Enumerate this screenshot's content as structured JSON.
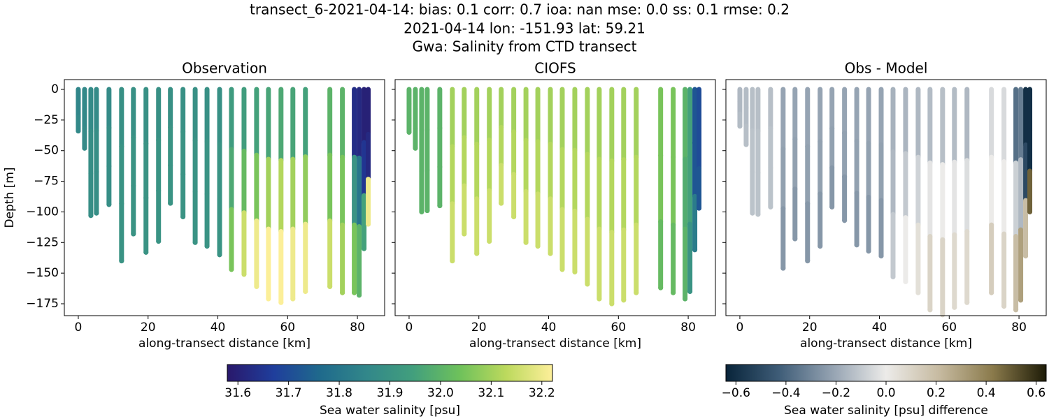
{
  "title": [
    "transect_6-2021-04-14: bias: 0.1  corr: 0.7  ioa: nan  mse: 0.0  ss: 0.1  rmse: 0.2",
    "2021-04-14 lon: -151.93 lat: 59.21",
    "Gwa: Salinity from CTD transect"
  ],
  "chart_data": [
    {
      "type": "scatter",
      "title": "Observation",
      "xlabel": "along-transect distance [km]",
      "ylabel": "Depth [m]",
      "xlim": [
        -4,
        87.8
      ],
      "ylim": [
        -184.7,
        8
      ],
      "xticks": [
        0,
        20,
        40,
        60,
        80
      ],
      "yticks": [
        {
          "value": 0,
          "label": "0"
        },
        {
          "value": -25,
          "label": "−25"
        },
        {
          "value": -50,
          "label": "−50"
        },
        {
          "value": -75,
          "label": "−75"
        },
        {
          "value": -100,
          "label": "−100"
        },
        {
          "value": -125,
          "label": "−125"
        },
        {
          "value": -150,
          "label": "−150"
        },
        {
          "value": -175,
          "label": "−175"
        }
      ],
      "x": [
        0,
        1.8,
        3.6,
        5.2,
        8.8,
        12.4,
        15.8,
        19.4,
        23,
        26.4,
        30,
        33.5,
        36.9,
        40.5,
        43.9,
        47.5,
        51.1,
        54.5,
        58.1,
        61.5,
        65.1,
        72.1,
        75.7,
        79.1,
        80.5,
        81.9,
        83.1
      ],
      "depths": [
        -34,
        -48,
        -103,
        -101,
        -94,
        -140,
        -118,
        -133,
        -124,
        -93,
        -104,
        -125,
        -128,
        -135,
        -147,
        -151,
        -161,
        -171,
        -174,
        -171,
        -165,
        -161,
        -166,
        -166,
        -168,
        -130,
        -110
      ],
      "values": [
        [
          31.85,
          31.85,
          31.86
        ],
        [
          31.86,
          31.86,
          31.87
        ],
        [
          31.87,
          31.88,
          31.88
        ],
        [
          31.87,
          31.88,
          31.88
        ],
        [
          31.87,
          31.88,
          31.88
        ],
        [
          31.89,
          31.9,
          31.9
        ],
        [
          31.89,
          31.9,
          31.9
        ],
        [
          31.89,
          31.9,
          31.9
        ],
        [
          31.89,
          31.9,
          31.9
        ],
        [
          31.89,
          31.9,
          31.9
        ],
        [
          31.89,
          31.9,
          31.9
        ],
        [
          31.89,
          31.9,
          31.9
        ],
        [
          31.89,
          31.9,
          31.9
        ],
        [
          31.89,
          31.9,
          31.9
        ],
        [
          31.93,
          31.97,
          32.05
        ],
        [
          31.94,
          32.02,
          32.15
        ],
        [
          31.95,
          32.05,
          32.2
        ],
        [
          31.96,
          32.1,
          32.22
        ],
        [
          31.97,
          32.12,
          32.22
        ],
        [
          31.96,
          32.1,
          32.2
        ],
        [
          31.95,
          32.08,
          32.2
        ],
        [
          32.0,
          32.05,
          32.15
        ],
        [
          32.0,
          32.05,
          32.1
        ],
        [
          31.63,
          31.9,
          32.05
        ],
        [
          31.62,
          31.8,
          32.0
        ],
        [
          31.6,
          31.65,
          31.95
        ],
        [
          31.6,
          31.62,
          32.2
        ]
      ],
      "colorbar": {
        "label": "Sea water salinity [psu]",
        "lim": [
          31.579,
          32.221
        ],
        "ticks": [
          31.6,
          31.7,
          31.8,
          31.9,
          32.0,
          32.1,
          32.2
        ],
        "tick_labels": [
          "31.6",
          "31.7",
          "31.8",
          "31.9",
          "32.0",
          "32.1",
          "32.2"
        ],
        "colors": [
          "#29186b",
          "#1f3e9c",
          "#1f6a8c",
          "#32878a",
          "#429f7d",
          "#6ec15b",
          "#bcd95d",
          "#fdef9a"
        ]
      }
    },
    {
      "type": "scatter",
      "title": "CIOFS",
      "xlabel": "along-transect distance [km]",
      "xlim": [
        -4,
        87.8
      ],
      "ylim": [
        -184.7,
        8
      ],
      "xticks": [
        0,
        20,
        40,
        60,
        80
      ],
      "yticks": [
        0,
        -25,
        -50,
        -75,
        -100,
        -125,
        -150,
        -175
      ],
      "x": [
        0,
        1.8,
        3.6,
        5.2,
        8.8,
        12.4,
        15.8,
        19.4,
        23,
        26.4,
        30,
        33.5,
        36.9,
        40.5,
        43.9,
        47.5,
        51.1,
        54.5,
        58.1,
        61.5,
        65.1,
        72.1,
        75.7,
        79.1,
        80.5,
        81.9,
        83.1
      ],
      "depths": [
        -35,
        -48,
        -100,
        -99,
        -95,
        -140,
        -118,
        -134,
        -124,
        -93,
        -104,
        -125,
        -128,
        -134,
        -147,
        -149,
        -159,
        -171,
        -175,
        -172,
        -166,
        -162,
        -166,
        -171,
        -165,
        -131,
        -97
      ],
      "values": [
        [
          32.0,
          32.0,
          32.0
        ],
        [
          32.0,
          32.0,
          32.0
        ],
        [
          32.0,
          32.0,
          32.0
        ],
        [
          32.0,
          32.0,
          32.0
        ],
        [
          32.0,
          32.0,
          32.0
        ],
        [
          32.1,
          32.12,
          32.15
        ],
        [
          32.1,
          32.12,
          32.15
        ],
        [
          32.1,
          32.12,
          32.15
        ],
        [
          32.1,
          32.12,
          32.15
        ],
        [
          32.1,
          32.12,
          32.15
        ],
        [
          32.1,
          32.12,
          32.15
        ],
        [
          32.1,
          32.12,
          32.15
        ],
        [
          32.1,
          32.12,
          32.15
        ],
        [
          32.1,
          32.12,
          32.15
        ],
        [
          32.1,
          32.12,
          32.15
        ],
        [
          32.1,
          32.12,
          32.15
        ],
        [
          32.1,
          32.12,
          32.15
        ],
        [
          32.1,
          32.12,
          32.15
        ],
        [
          32.1,
          32.12,
          32.15
        ],
        [
          32.1,
          32.12,
          32.15
        ],
        [
          32.1,
          32.12,
          32.15
        ],
        [
          32.05,
          32.05,
          32.02
        ],
        [
          32.05,
          32.05,
          32.02
        ],
        [
          32.0,
          31.98,
          32.0
        ],
        [
          31.95,
          31.95,
          31.9
        ],
        [
          31.72,
          31.72,
          31.82
        ],
        [
          31.7,
          31.7,
          31.72
        ]
      ]
    },
    {
      "type": "scatter",
      "title": "Obs - Model",
      "xlabel": "along-transect distance [km]",
      "xlim": [
        -4,
        87.8
      ],
      "ylim": [
        -184.7,
        8
      ],
      "xticks": [
        0,
        20,
        40,
        60,
        80
      ],
      "yticks": [
        0,
        -25,
        -50,
        -75,
        -100,
        -125,
        -150,
        -175
      ],
      "x": [
        0,
        1.8,
        3.6,
        5.2,
        8.8,
        12.4,
        15.8,
        19.4,
        23,
        26.4,
        30,
        33.5,
        36.9,
        40.5,
        43.9,
        47.5,
        51.1,
        54.5,
        58.1,
        61.5,
        65.1,
        72.1,
        75.7,
        79.1,
        80.5,
        81.9,
        83.1
      ],
      "depths": [
        -30,
        -45,
        -101,
        -102,
        -96,
        -146,
        -122,
        -140,
        -128,
        -96,
        -107,
        -127,
        -132,
        -136,
        -153,
        -157,
        -166,
        -180,
        -184,
        -178,
        -174,
        -166,
        -177,
        -180,
        -172,
        -136,
        -100
      ],
      "values": [
        [
          -0.15,
          -0.15,
          -0.14
        ],
        [
          -0.14,
          -0.14,
          -0.13
        ],
        [
          -0.13,
          -0.12,
          -0.12
        ],
        [
          -0.13,
          -0.12,
          -0.12
        ],
        [
          -0.13,
          -0.12,
          -0.12
        ],
        [
          -0.21,
          -0.22,
          -0.25
        ],
        [
          -0.21,
          -0.22,
          -0.25
        ],
        [
          -0.21,
          -0.22,
          -0.25
        ],
        [
          -0.21,
          -0.22,
          -0.25
        ],
        [
          -0.21,
          -0.22,
          -0.25
        ],
        [
          -0.21,
          -0.22,
          -0.25
        ],
        [
          -0.21,
          -0.22,
          -0.25
        ],
        [
          -0.21,
          -0.22,
          -0.25
        ],
        [
          -0.21,
          -0.22,
          -0.25
        ],
        [
          -0.17,
          -0.15,
          -0.1
        ],
        [
          -0.16,
          -0.1,
          0.0
        ],
        [
          -0.15,
          -0.07,
          0.05
        ],
        [
          -0.14,
          -0.02,
          0.1
        ],
        [
          -0.13,
          0.0,
          0.1
        ],
        [
          -0.14,
          -0.02,
          0.08
        ],
        [
          -0.15,
          -0.04,
          0.08
        ],
        [
          -0.05,
          0.0,
          0.13
        ],
        [
          -0.05,
          0.0,
          0.1
        ],
        [
          -0.37,
          -0.08,
          0.2
        ],
        [
          -0.33,
          -0.15,
          0.3
        ],
        [
          -0.6,
          -0.5,
          0.2
        ],
        [
          -0.6,
          -0.6,
          0.48
        ]
      ],
      "colorbar": {
        "label": "Sea water salinity [psu] difference",
        "lim": [
          -0.64,
          0.64
        ],
        "ticks": [
          -0.6,
          -0.4,
          -0.2,
          0.0,
          0.2,
          0.4,
          0.6
        ],
        "tick_labels": [
          "−0.6",
          "−0.4",
          "−0.2",
          "0.0",
          "0.2",
          "0.4",
          "0.6"
        ],
        "colors": [
          "#08243a",
          "#3f5d78",
          "#95a3b2",
          "#ecebe9",
          "#c6baa0",
          "#8a7a4b",
          "#1d1b07"
        ]
      }
    }
  ]
}
